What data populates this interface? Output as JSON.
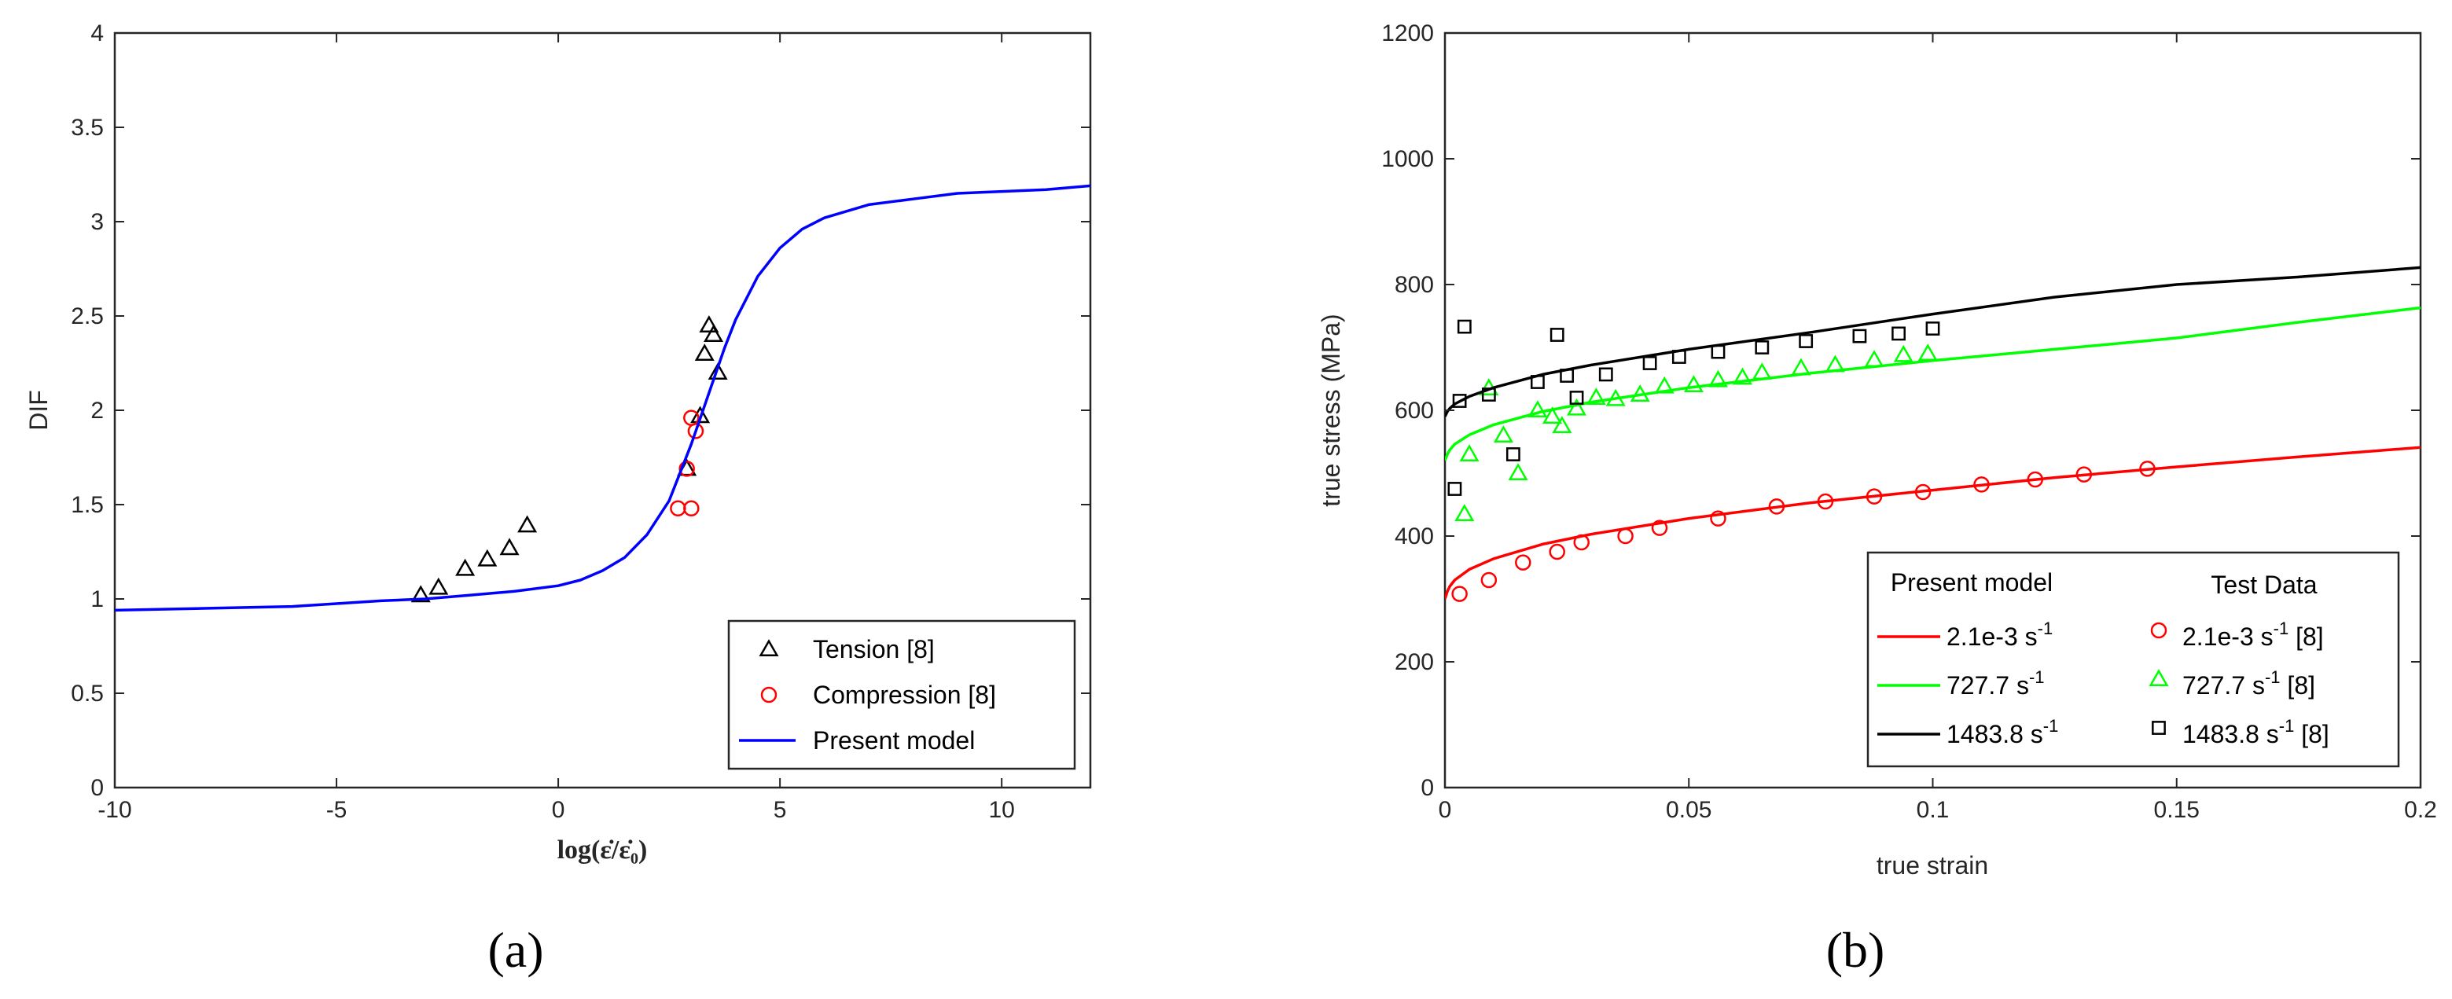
{
  "chart_data": [
    {
      "type": "line",
      "panel_label": "(a)",
      "xlabel": "log(ε̇/ε̇₀)",
      "ylabel": "DIF",
      "xlim": [
        -10,
        12
      ],
      "ylim": [
        0,
        4
      ],
      "xticks": [
        "-10",
        "-5",
        "0",
        "5",
        "10"
      ],
      "yticks": [
        "0",
        "0.5",
        "1",
        "1.5",
        "2",
        "2.5",
        "3",
        "3.5",
        "4"
      ],
      "legend_position": "bottom-right",
      "series": [
        {
          "name": "Tension [8]",
          "kind": "scatter",
          "marker": "triangle",
          "color": "#000000",
          "x": [
            -3.1,
            -2.7,
            -2.1,
            -1.6,
            -1.1,
            -0.7,
            2.9,
            3.2,
            3.3,
            3.4,
            3.5,
            3.6
          ],
          "y": [
            1.02,
            1.06,
            1.16,
            1.21,
            1.27,
            1.39,
            1.69,
            1.97,
            2.3,
            2.45,
            2.4,
            2.2
          ]
        },
        {
          "name": "Compression [8]",
          "kind": "scatter",
          "marker": "circle",
          "color": "#ff0000",
          "x": [
            2.7,
            3.0,
            2.9,
            3.1,
            3.0
          ],
          "y": [
            1.48,
            1.48,
            1.69,
            1.89,
            1.96
          ]
        },
        {
          "name": "Present model",
          "kind": "line",
          "color": "#0000ff",
          "x": [
            -10,
            -8,
            -6,
            -4,
            -3,
            -2,
            -1,
            0,
            0.5,
            1,
            1.5,
            2,
            2.5,
            3,
            3.25,
            3.5,
            3.75,
            4,
            4.5,
            5,
            5.5,
            6,
            7,
            8,
            9,
            10,
            11,
            12
          ],
          "y": [
            0.94,
            0.95,
            0.96,
            0.99,
            1.0,
            1.02,
            1.04,
            1.07,
            1.1,
            1.15,
            1.22,
            1.34,
            1.52,
            1.82,
            1.99,
            2.16,
            2.33,
            2.48,
            2.71,
            2.86,
            2.96,
            3.02,
            3.09,
            3.12,
            3.15,
            3.16,
            3.17,
            3.19
          ]
        }
      ]
    },
    {
      "type": "line",
      "panel_label": "(b)",
      "xlabel": "true strain",
      "ylabel": "true stress (MPa)",
      "xlim": [
        0,
        0.2
      ],
      "ylim": [
        0,
        1200
      ],
      "xticks": [
        "0",
        "0.05",
        "0.1",
        "0.15",
        "0.2"
      ],
      "yticks": [
        "0",
        "200",
        "400",
        "600",
        "800",
        "1000",
        "1200"
      ],
      "legend_position": "bottom-right",
      "legend_headers": [
        "Present model",
        "Test Data"
      ],
      "series": [
        {
          "name": "2.1e-3 s",
          "unit_sup": "-1",
          "kind": "line",
          "color": "#ff0000",
          "x": [
            0,
            0.0005,
            0.001,
            0.002,
            0.005,
            0.01,
            0.02,
            0.03,
            0.05,
            0.075,
            0.1,
            0.125,
            0.15,
            0.175,
            0.2
          ],
          "y": [
            300,
            312,
            320,
            330,
            347,
            364,
            387,
            403,
            428,
            453,
            473,
            493,
            510,
            526,
            541
          ]
        },
        {
          "name": "2.1e-3 s",
          "unit_sup": "-1",
          "ref": "[8]",
          "kind": "scatter",
          "marker": "circle",
          "color": "#ff0000",
          "x": [
            0.003,
            0.009,
            0.016,
            0.023,
            0.028,
            0.037,
            0.044,
            0.056,
            0.068,
            0.078,
            0.088,
            0.098,
            0.11,
            0.121,
            0.131,
            0.144
          ],
          "y": [
            308,
            330,
            358,
            375,
            390,
            400,
            413,
            428,
            447,
            455,
            463,
            470,
            482,
            490,
            498,
            507
          ]
        },
        {
          "name": "727.7 s",
          "unit_sup": "-1",
          "kind": "line",
          "color": "#00ff00",
          "x": [
            0,
            0.0005,
            0.001,
            0.002,
            0.005,
            0.01,
            0.02,
            0.03,
            0.05,
            0.075,
            0.1,
            0.125,
            0.15,
            0.175,
            0.2
          ],
          "y": [
            520,
            530,
            537,
            546,
            561,
            577,
            598,
            613,
            636,
            659,
            679,
            697,
            715,
            740,
            763
          ]
        },
        {
          "name": "727.7 s",
          "unit_sup": "-1",
          "ref": "[8]",
          "kind": "scatter",
          "marker": "triangle",
          "color": "#00ff00",
          "x": [
            0.004,
            0.005,
            0.009,
            0.012,
            0.015,
            0.019,
            0.022,
            0.024,
            0.027,
            0.031,
            0.035,
            0.04,
            0.045,
            0.051,
            0.056,
            0.061,
            0.065,
            0.073,
            0.08,
            0.088,
            0.094,
            0.099
          ],
          "y": [
            435,
            530,
            635,
            560,
            500,
            600,
            590,
            575,
            603,
            620,
            618,
            625,
            638,
            640,
            648,
            652,
            660,
            667,
            672,
            680,
            688,
            690
          ]
        },
        {
          "name": "1483.8 s",
          "unit_sup": "-1",
          "kind": "line",
          "color": "#000000",
          "x": [
            0,
            0.0005,
            0.001,
            0.002,
            0.005,
            0.01,
            0.02,
            0.03,
            0.05,
            0.075,
            0.1,
            0.125,
            0.15,
            0.175,
            0.2
          ],
          "y": [
            590,
            598,
            603,
            610,
            622,
            636,
            657,
            672,
            697,
            724,
            753,
            780,
            800,
            812,
            827
          ]
        },
        {
          "name": "1483.8 s",
          "unit_sup": "-1",
          "ref": "[8]",
          "kind": "scatter",
          "marker": "square",
          "color": "#000000",
          "x": [
            0.002,
            0.003,
            0.004,
            0.009,
            0.014,
            0.019,
            0.023,
            0.025,
            0.027,
            0.033,
            0.042,
            0.048,
            0.056,
            0.065,
            0.074,
            0.085,
            0.093,
            0.1
          ],
          "y": [
            475,
            615,
            733,
            625,
            530,
            645,
            720,
            655,
            620,
            657,
            675,
            685,
            693,
            700,
            710,
            718,
            722,
            730
          ]
        }
      ]
    }
  ]
}
